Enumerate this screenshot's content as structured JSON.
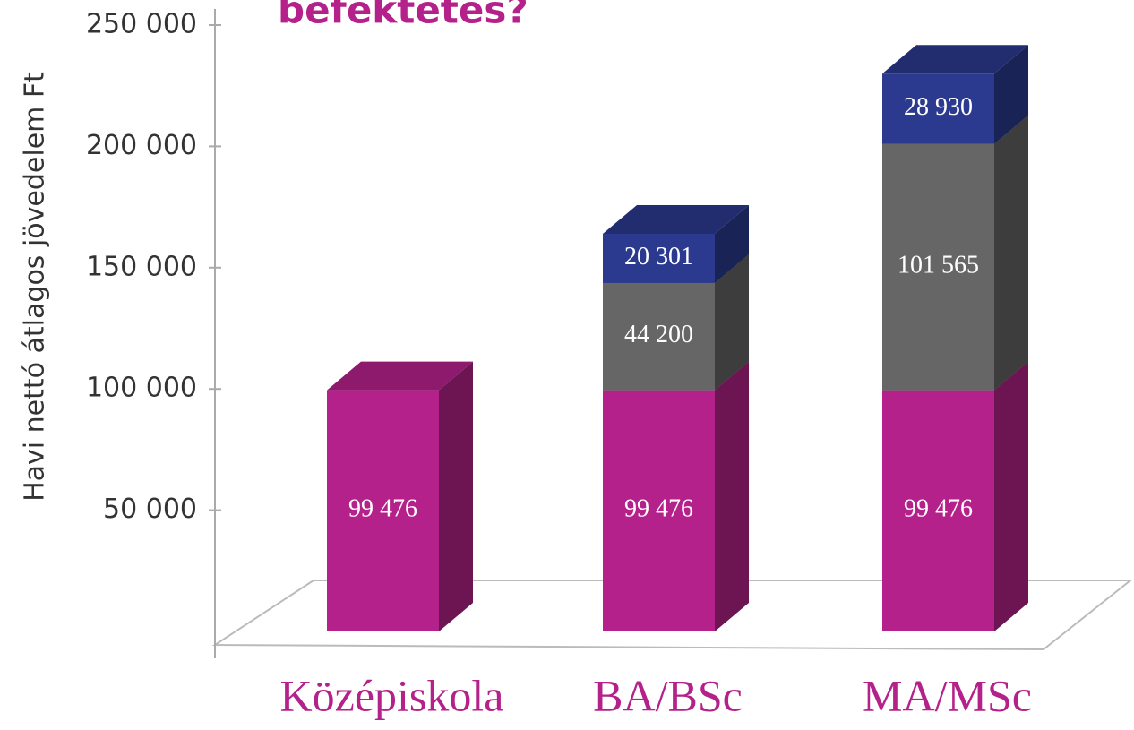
{
  "chart_data": {
    "type": "bar3d_stacked",
    "title": "befektetés?",
    "y_label": "Havi nettó átlagos jövedelem Ft",
    "categories": [
      "Középiskola",
      "BA/BSc",
      "MA/MSc"
    ],
    "series": [
      {
        "color": "#b5218a",
        "values": [
          99476,
          99476,
          99476
        ],
        "value_labels": [
          "99 476",
          "99 476",
          "99 476"
        ]
      },
      {
        "color": "#666666",
        "values": [
          null,
          44200,
          101565
        ],
        "value_labels": [
          null,
          "44 200",
          "101 565"
        ]
      },
      {
        "color": "#2b3a8e",
        "values": [
          null,
          20301,
          28930
        ],
        "value_labels": [
          null,
          "20 301",
          "28 930"
        ]
      }
    ],
    "ylim": [
      0,
      250000
    ],
    "yticks": [
      {
        "value": 50000,
        "label": "50 000"
      },
      {
        "value": 100000,
        "label": "100 000"
      },
      {
        "value": 150000,
        "label": "150 000"
      },
      {
        "value": 200000,
        "label": "200 000"
      },
      {
        "value": 250000,
        "label": "250 000"
      }
    ]
  }
}
